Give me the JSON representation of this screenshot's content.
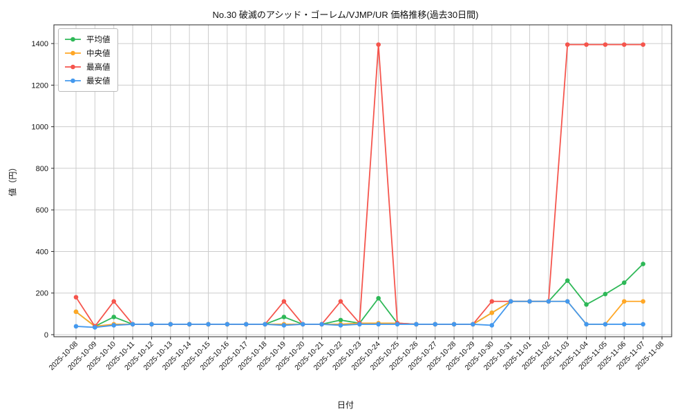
{
  "chart_data": {
    "type": "line",
    "title": "No.30 破滅のアシッド・ゴーレム/VJMP/UR 価格推移(過去30日間)",
    "xlabel": "日付",
    "ylabel": "値（円）",
    "ylim": [
      -10,
      1490
    ],
    "yticks": [
      0,
      200,
      400,
      600,
      800,
      1000,
      1200,
      1400
    ],
    "grid": true,
    "legend_position": "upper-left",
    "categories": [
      "2025-10-08",
      "2025-10-09",
      "2025-10-10",
      "2025-10-11",
      "2025-10-12",
      "2025-10-13",
      "2025-10-14",
      "2025-10-15",
      "2025-10-16",
      "2025-10-17",
      "2025-10-18",
      "2025-10-19",
      "2025-10-20",
      "2025-10-21",
      "2025-10-22",
      "2025-10-23",
      "2025-10-24",
      "2025-10-25",
      "2025-10-26",
      "2025-10-27",
      "2025-10-28",
      "2025-10-29",
      "2025-10-30",
      "2025-10-31",
      "2025-11-01",
      "2025-11-02",
      "2025-11-03",
      "2025-11-04",
      "2025-11-05",
      "2025-11-06",
      "2025-11-07",
      "2025-11-08"
    ],
    "series": [
      {
        "name": "平均値",
        "color": "#2eb857",
        "values": [
          110,
          40,
          85,
          50,
          50,
          50,
          50,
          50,
          50,
          50,
          50,
          85,
          50,
          50,
          70,
          55,
          175,
          55,
          50,
          50,
          50,
          50,
          105,
          160,
          160,
          160,
          260,
          145,
          195,
          250,
          340,
          null
        ]
      },
      {
        "name": "中央値",
        "color": "#ffa726",
        "values": [
          110,
          40,
          50,
          50,
          50,
          50,
          50,
          50,
          50,
          50,
          50,
          50,
          50,
          50,
          50,
          55,
          55,
          55,
          50,
          50,
          50,
          50,
          105,
          160,
          160,
          160,
          160,
          50,
          50,
          160,
          160,
          null
        ]
      },
      {
        "name": "最高値",
        "color": "#f5554d",
        "values": [
          180,
          40,
          160,
          50,
          50,
          50,
          50,
          50,
          50,
          50,
          50,
          160,
          50,
          50,
          160,
          55,
          1395,
          55,
          50,
          50,
          50,
          50,
          160,
          160,
          160,
          160,
          1395,
          1395,
          1395,
          1395,
          1395,
          null
        ]
      },
      {
        "name": "最安値",
        "color": "#4499ee",
        "values": [
          40,
          35,
          45,
          50,
          50,
          50,
          50,
          50,
          50,
          50,
          50,
          45,
          50,
          50,
          45,
          50,
          50,
          50,
          50,
          50,
          50,
          50,
          45,
          160,
          160,
          160,
          160,
          50,
          50,
          50,
          50,
          null
        ]
      }
    ]
  }
}
